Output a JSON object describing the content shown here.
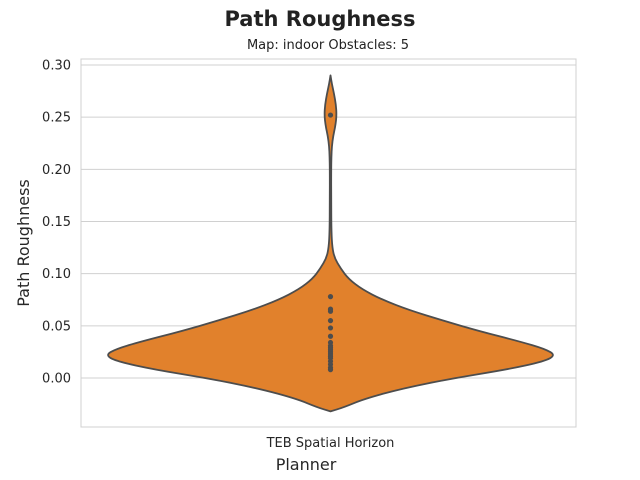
{
  "chart_data": {
    "type": "violin",
    "title": "Path Roughness",
    "subtitle": "Map: indoor Obstacles: 5",
    "xlabel": "Planner",
    "ylabel": "Path Roughness",
    "categories": [
      "TEB Spatial Horizon"
    ],
    "ylim": [
      -0.032,
      0.29
    ],
    "yticks": [
      0.0,
      0.05,
      0.1,
      0.15,
      0.2,
      0.25,
      0.3
    ],
    "ytick_labels": [
      "0.00",
      "0.05",
      "0.10",
      "0.15",
      "0.20",
      "0.25",
      "0.30"
    ],
    "grid": true,
    "series": [
      {
        "category": "TEB Spatial Horizon",
        "color": "#e1812c",
        "points": [
          0.252,
          0.078,
          0.066,
          0.064,
          0.055,
          0.048,
          0.04,
          0.034,
          0.031,
          0.029,
          0.027,
          0.025,
          0.023,
          0.021,
          0.019,
          0.016,
          0.013,
          0.01,
          0.008
        ],
        "density_profile": {
          "y": [
            0.29,
            0.282,
            0.272,
            0.262,
            0.252,
            0.242,
            0.232,
            0.222,
            0.212,
            0.2,
            0.17,
            0.14,
            0.125,
            0.115,
            0.105,
            0.095,
            0.085,
            0.075,
            0.065,
            0.055,
            0.045,
            0.035,
            0.028,
            0.022,
            0.016,
            0.008,
            0.0,
            -0.01,
            -0.02,
            -0.028,
            -0.032
          ],
          "relative_width": [
            0.0,
            0.006,
            0.016,
            0.024,
            0.027,
            0.022,
            0.012,
            0.006,
            0.004,
            0.003,
            0.003,
            0.004,
            0.008,
            0.018,
            0.045,
            0.08,
            0.14,
            0.23,
            0.35,
            0.5,
            0.66,
            0.84,
            0.95,
            1.0,
            0.95,
            0.78,
            0.55,
            0.32,
            0.15,
            0.06,
            0.0
          ]
        }
      }
    ]
  }
}
